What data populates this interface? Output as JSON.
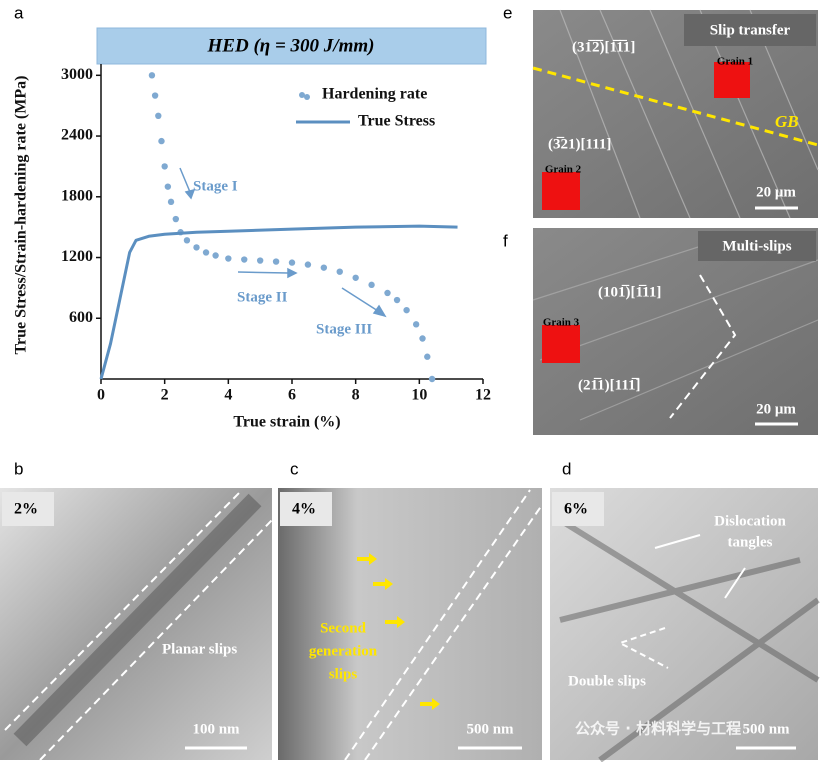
{
  "chart_data": {
    "type": "line",
    "panel_label": "a",
    "title": "HED (η = 300 J/mm)",
    "xlabel": "True strain (%)",
    "ylabel": "True Stress/Strain-hardening rate (MPa)",
    "xlim": [
      0,
      12
    ],
    "xticks": [
      0,
      2,
      4,
      6,
      8,
      10,
      12
    ],
    "ylim": [
      0,
      3250
    ],
    "yticks": [
      600,
      1200,
      1800,
      2400,
      3000
    ],
    "annotations": [
      "Stage I",
      "Stage II",
      "Stage III"
    ],
    "series": [
      {
        "name": "Hardening rate",
        "color": "#7fa9d1",
        "mode": "markers",
        "x": [
          1.6,
          1.7,
          1.8,
          1.9,
          2.0,
          2.1,
          2.2,
          2.35,
          2.5,
          2.7,
          3.0,
          3.3,
          3.6,
          4.0,
          4.5,
          5.0,
          5.5,
          6.0,
          6.5,
          7.0,
          7.5,
          8.0,
          8.5,
          9.0,
          9.3,
          9.6,
          9.9,
          10.1,
          10.25,
          10.4
        ],
        "values": [
          3000,
          2800,
          2600,
          2350,
          2100,
          1900,
          1750,
          1580,
          1450,
          1370,
          1300,
          1250,
          1220,
          1190,
          1180,
          1170,
          1160,
          1150,
          1130,
          1100,
          1060,
          1000,
          930,
          850,
          780,
          680,
          540,
          400,
          220,
          0
        ]
      },
      {
        "name": "True Stress",
        "color": "#5b8fc0",
        "mode": "line",
        "x": [
          0,
          0.3,
          0.6,
          0.9,
          1.1,
          1.5,
          2,
          3,
          4,
          6,
          8,
          10,
          11.2
        ],
        "values": [
          0,
          350,
          800,
          1250,
          1370,
          1410,
          1430,
          1450,
          1460,
          1480,
          1500,
          1510,
          1500
        ]
      }
    ]
  },
  "panels": {
    "b": {
      "label": "b",
      "strain": "2%",
      "annotation": [
        "Planar slips"
      ],
      "scale": "100 nm"
    },
    "c": {
      "label": "c",
      "strain": "4%",
      "annotation": [
        "Second",
        "generation",
        "slips"
      ],
      "scale": "500 nm"
    },
    "d": {
      "label": "d",
      "strain": "6%",
      "annotation": [
        "Dislocation",
        "tangles",
        "Double slips"
      ],
      "scale": "500 nm"
    },
    "e": {
      "label": "e",
      "title": "Slip transfer",
      "annotation": [
        "(31̅2̅)[1̅1̅1]",
        "(3̅21)[111]",
        "Grain 1",
        "Grain 2",
        "GB"
      ],
      "scale": "20 μm"
    },
    "f": {
      "label": "f",
      "title": "Multi-slips",
      "annotation": [
        "(101̅)[1̅11]",
        "(21̅1)[111̅]",
        "Grain 3"
      ],
      "scale": "20 μm"
    }
  },
  "watermark": "公众号 · 材料科学与工程"
}
